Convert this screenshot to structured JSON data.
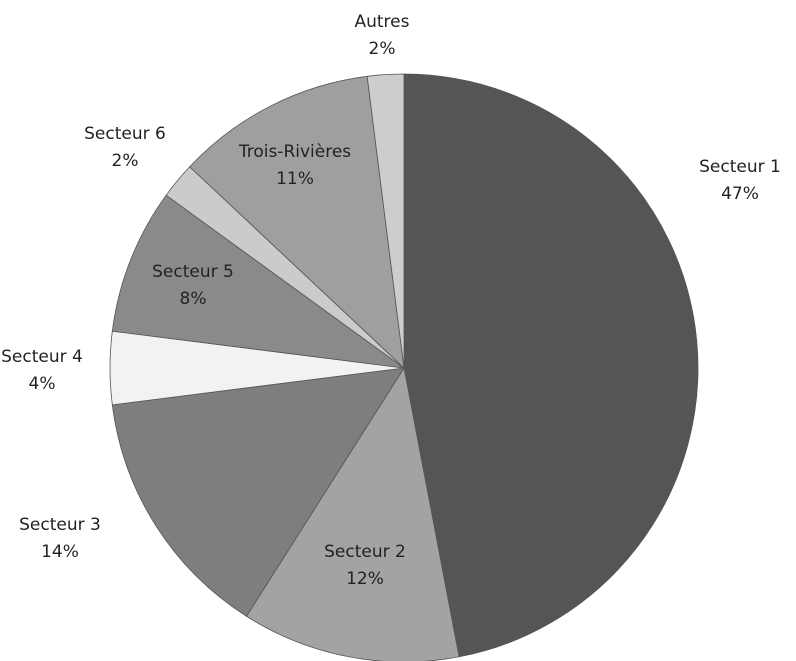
{
  "chart_data": {
    "type": "pie",
    "categories": [
      "Secteur 1",
      "Secteur 2",
      "Secteur 3",
      "Secteur 4",
      "Secteur 5",
      "Secteur 6",
      "Trois-Rivières",
      "Autres"
    ],
    "values": [
      47,
      12,
      14,
      4,
      8,
      2,
      11,
      2
    ],
    "value_labels": [
      "47%",
      "12%",
      "14%",
      "4%",
      "8%",
      "2%",
      "11%",
      "2%"
    ],
    "colors": [
      "#555555",
      "#a3a3a3",
      "#7e7e7e",
      "#f2f2f2",
      "#8a8a8a",
      "#cbcbcb",
      "#9f9f9f",
      "#cdcdcd"
    ]
  }
}
